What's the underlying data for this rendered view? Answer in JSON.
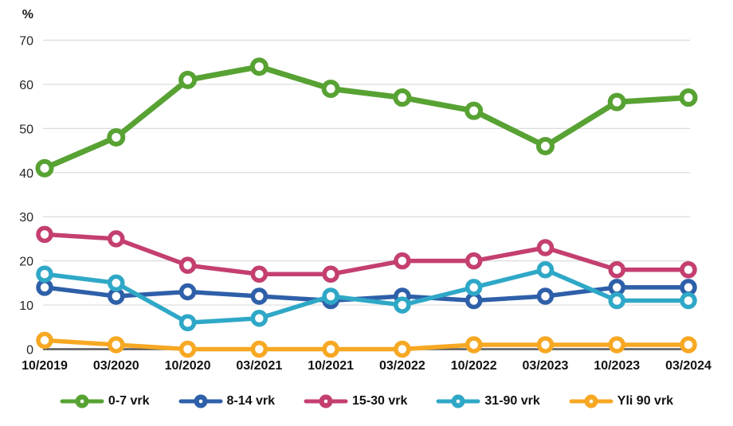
{
  "chart_data": {
    "type": "line",
    "title": "",
    "ylabel": "%",
    "xlabel": "",
    "ylim": [
      0,
      70
    ],
    "yticks": [
      0,
      10,
      20,
      30,
      40,
      50,
      60,
      70
    ],
    "grid": true,
    "legend_position": "bottom",
    "categories": [
      "10/2019",
      "03/2020",
      "10/2020",
      "03/2021",
      "10/2021",
      "03/2022",
      "10/2022",
      "03/2023",
      "10/2023",
      "03/2024"
    ],
    "series": [
      {
        "name": "0-7 vrk",
        "color": "#57A233",
        "values": [
          41,
          48,
          61,
          64,
          59,
          57,
          54,
          46,
          56,
          57
        ]
      },
      {
        "name": "8-14 vrk",
        "color": "#2E5FA9",
        "values": [
          14,
          12,
          13,
          12,
          11,
          12,
          11,
          12,
          14,
          14
        ]
      },
      {
        "name": "15-30 vrk",
        "color": "#C43F70",
        "values": [
          26,
          25,
          19,
          17,
          17,
          20,
          20,
          23,
          18,
          18
        ]
      },
      {
        "name": "31-90 vrk",
        "color": "#2FA8C7",
        "values": [
          17,
          15,
          6,
          7,
          12,
          10,
          14,
          18,
          11,
          11
        ]
      },
      {
        "name": "Yli 90 vrk",
        "color": "#F7A823",
        "values": [
          2,
          1,
          0,
          0,
          0,
          0,
          1,
          1,
          1,
          1
        ]
      }
    ],
    "colors": {
      "axis_line": "#58595B",
      "gridline": "#DBDBDB",
      "marker_fill": "#FFFFFF",
      "tick_label": "#262626",
      "category_label": "#111111"
    }
  }
}
